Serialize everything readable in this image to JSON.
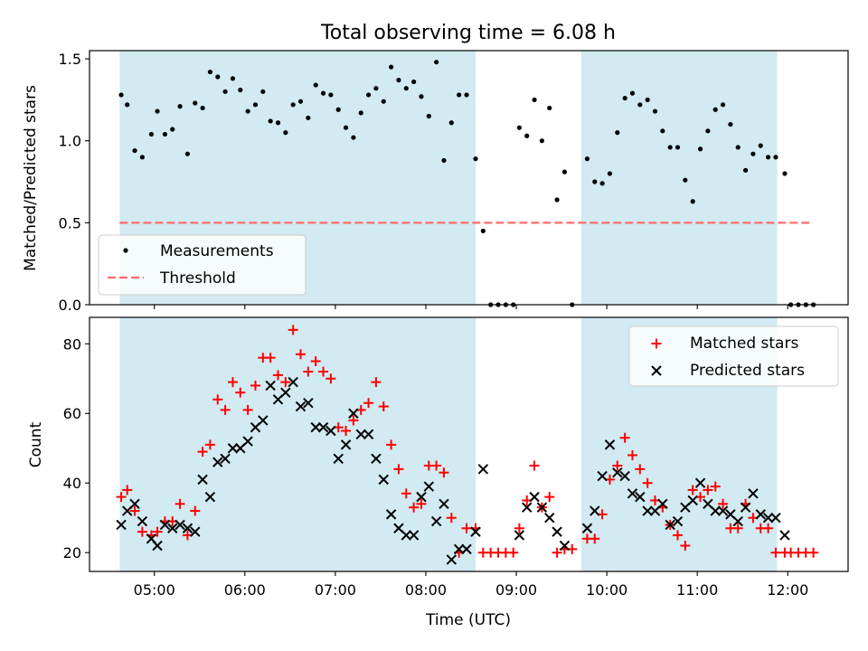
{
  "title": "Total observing time = 6.08 h",
  "shaded_intervals": [
    [
      4.617,
      8.55
    ],
    [
      9.717,
      11.883
    ]
  ],
  "colors": {
    "shade": "#add8e6",
    "matched": "#ff0000",
    "predicted": "#000000",
    "measurement": "#000000",
    "threshold": "#ff6b6b"
  },
  "chart_data": [
    {
      "type": "scatter",
      "ylabel": "Matched/Predicted stars",
      "xlim": [
        "04:17",
        "12:40"
      ],
      "ylim": [
        0,
        1.55
      ],
      "yticks": [
        0.0,
        0.5,
        1.0,
        1.5
      ],
      "yticklabels": [
        "0.0",
        "0.5",
        "1.0",
        "1.5"
      ],
      "legend": {
        "position": "lower-left",
        "entries": [
          "Measurements",
          "Threshold"
        ]
      },
      "threshold": {
        "name": "Threshold",
        "value": 0.5,
        "x_range": [
          "04:37",
          "12:17"
        ]
      },
      "series": [
        {
          "name": "Measurements",
          "x": [
            "04:38",
            "04:42",
            "04:47",
            "04:52",
            "04:58",
            "05:02",
            "05:07",
            "05:12",
            "05:17",
            "05:22",
            "05:27",
            "05:32",
            "05:37",
            "05:42",
            "05:47",
            "05:52",
            "05:57",
            "06:02",
            "06:07",
            "06:12",
            "06:17",
            "06:22",
            "06:27",
            "06:32",
            "06:37",
            "06:42",
            "06:47",
            "06:52",
            "06:57",
            "07:02",
            "07:07",
            "07:12",
            "07:17",
            "07:22",
            "07:27",
            "07:32",
            "07:37",
            "07:42",
            "07:47",
            "07:52",
            "07:57",
            "08:02",
            "08:07",
            "08:12",
            "08:17",
            "08:22",
            "08:27",
            "08:33",
            "08:38",
            "08:43",
            "08:48",
            "08:53",
            "08:58",
            "09:02",
            "09:07",
            "09:12",
            "09:17",
            "09:22",
            "09:27",
            "09:32",
            "09:37",
            "09:47",
            "09:52",
            "09:57",
            "10:02",
            "10:07",
            "10:12",
            "10:17",
            "10:22",
            "10:27",
            "10:32",
            "10:37",
            "10:42",
            "10:47",
            "10:52",
            "10:57",
            "11:02",
            "11:07",
            "11:12",
            "11:17",
            "11:22",
            "11:27",
            "11:32",
            "11:37",
            "11:42",
            "11:47",
            "11:52",
            "11:58",
            "12:02",
            "12:07",
            "12:12",
            "12:17"
          ],
          "y": [
            1.28,
            1.22,
            0.94,
            0.9,
            1.04,
            1.18,
            1.04,
            1.07,
            1.21,
            0.92,
            1.23,
            1.2,
            1.42,
            1.39,
            1.3,
            1.38,
            1.31,
            1.18,
            1.22,
            1.3,
            1.12,
            1.11,
            1.05,
            1.22,
            1.24,
            1.14,
            1.34,
            1.29,
            1.28,
            1.19,
            1.08,
            1.02,
            1.17,
            1.28,
            1.32,
            1.24,
            1.45,
            1.37,
            1.32,
            1.36,
            1.27,
            1.15,
            1.48,
            0.88,
            1.11,
            1.28,
            1.28,
            0.89,
            0.45,
            0.0,
            0.0,
            0.0,
            0.0,
            1.08,
            1.03,
            1.25,
            1.0,
            1.2,
            0.64,
            0.81,
            0.0,
            0.89,
            0.75,
            0.74,
            0.8,
            1.05,
            1.26,
            1.29,
            1.22,
            1.25,
            1.18,
            1.06,
            0.96,
            0.96,
            0.76,
            0.63,
            0.95,
            1.06,
            1.19,
            1.22,
            1.1,
            0.96,
            0.82,
            0.92,
            0.97,
            0.9,
            0.9,
            0.8,
            0.0,
            0.0,
            0.0,
            0.0
          ]
        }
      ]
    },
    {
      "type": "scatter",
      "xlabel": "Time (UTC)",
      "ylabel": "Count",
      "xlim": [
        "04:17",
        "12:40"
      ],
      "ylim": [
        14.6,
        87.6
      ],
      "xticks": [
        "05:00",
        "06:00",
        "07:00",
        "08:00",
        "09:00",
        "10:00",
        "11:00",
        "12:00"
      ],
      "yticks": [
        20,
        40,
        60,
        80
      ],
      "legend": {
        "position": "upper-right",
        "entries": [
          "Matched stars",
          "Predicted stars"
        ]
      },
      "series": [
        {
          "name": "Matched stars",
          "x": [
            "04:38",
            "04:42",
            "04:47",
            "04:52",
            "04:58",
            "05:02",
            "05:07",
            "05:12",
            "05:17",
            "05:22",
            "05:27",
            "05:32",
            "05:37",
            "05:42",
            "05:47",
            "05:52",
            "05:57",
            "06:02",
            "06:07",
            "06:12",
            "06:17",
            "06:22",
            "06:27",
            "06:32",
            "06:37",
            "06:42",
            "06:47",
            "06:52",
            "06:57",
            "07:02",
            "07:07",
            "07:12",
            "07:17",
            "07:22",
            "07:27",
            "07:32",
            "07:37",
            "07:42",
            "07:47",
            "07:52",
            "07:57",
            "08:02",
            "08:07",
            "08:12",
            "08:17",
            "08:22",
            "08:27",
            "08:33",
            "08:38",
            "08:43",
            "08:48",
            "08:53",
            "08:58",
            "09:02",
            "09:07",
            "09:12",
            "09:17",
            "09:22",
            "09:27",
            "09:32",
            "09:37",
            "09:47",
            "09:52",
            "09:57",
            "10:02",
            "10:07",
            "10:12",
            "10:17",
            "10:22",
            "10:27",
            "10:32",
            "10:37",
            "10:42",
            "10:47",
            "10:52",
            "10:57",
            "11:02",
            "11:07",
            "11:12",
            "11:17",
            "11:22",
            "11:27",
            "11:32",
            "11:37",
            "11:42",
            "11:47",
            "11:52",
            "11:58",
            "12:02",
            "12:07",
            "12:12",
            "12:17"
          ],
          "y": [
            36,
            38,
            32,
            26,
            25,
            26,
            29,
            29,
            34,
            25,
            32,
            49,
            51,
            64,
            61,
            69,
            66,
            61,
            68,
            76,
            76,
            71,
            69,
            84,
            77,
            72,
            75,
            72,
            70,
            56,
            55,
            58,
            61,
            63,
            69,
            62,
            51,
            44,
            37,
            33,
            34,
            45,
            45,
            43,
            30,
            20,
            27,
            27,
            20,
            20,
            20,
            20,
            20,
            27,
            35,
            45,
            33,
            36,
            20,
            21,
            21,
            24,
            24,
            31,
            41,
            45,
            53,
            48,
            44,
            40,
            35,
            33,
            28,
            25,
            22,
            38,
            36,
            38,
            39,
            34,
            27,
            27,
            34,
            30,
            27,
            27,
            20,
            20,
            20,
            20,
            20,
            20
          ]
        },
        {
          "name": "Predicted stars",
          "x": [
            "04:38",
            "04:42",
            "04:47",
            "04:52",
            "04:58",
            "05:02",
            "05:07",
            "05:12",
            "05:17",
            "05:22",
            "05:27",
            "05:32",
            "05:37",
            "05:42",
            "05:47",
            "05:52",
            "05:57",
            "06:02",
            "06:07",
            "06:12",
            "06:17",
            "06:22",
            "06:27",
            "06:32",
            "06:37",
            "06:42",
            "06:47",
            "06:52",
            "06:57",
            "07:02",
            "07:07",
            "07:12",
            "07:17",
            "07:22",
            "07:27",
            "07:32",
            "07:37",
            "07:42",
            "07:47",
            "07:52",
            "07:57",
            "08:02",
            "08:07",
            "08:12",
            "08:17",
            "08:22",
            "08:27",
            "08:33",
            "08:38",
            "09:02",
            "09:07",
            "09:12",
            "09:17",
            "09:22",
            "09:27",
            "09:32",
            "09:47",
            "09:52",
            "09:57",
            "10:02",
            "10:07",
            "10:12",
            "10:17",
            "10:22",
            "10:27",
            "10:32",
            "10:37",
            "10:42",
            "10:47",
            "10:52",
            "10:57",
            "11:02",
            "11:07",
            "11:12",
            "11:17",
            "11:22",
            "11:27",
            "11:32",
            "11:37",
            "11:42",
            "11:47",
            "11:52",
            "11:58"
          ],
          "y": [
            28,
            32,
            34,
            29,
            24,
            22,
            28,
            27,
            28,
            27,
            26,
            41,
            36,
            46,
            47,
            50,
            50,
            52,
            56,
            58,
            68,
            64,
            66,
            69,
            62,
            63,
            56,
            56,
            55,
            47,
            51,
            60,
            54,
            54,
            47,
            41,
            31,
            27,
            25,
            25,
            36,
            39,
            29,
            34,
            18,
            21,
            21,
            26,
            44,
            25,
            33,
            36,
            33,
            30,
            26,
            22,
            27,
            32,
            42,
            51,
            43,
            42,
            37,
            36,
            32,
            32,
            34,
            28,
            29,
            33,
            35,
            40,
            34,
            32,
            32,
            31,
            29,
            33,
            37,
            31,
            30,
            30,
            25
          ]
        }
      ]
    }
  ]
}
